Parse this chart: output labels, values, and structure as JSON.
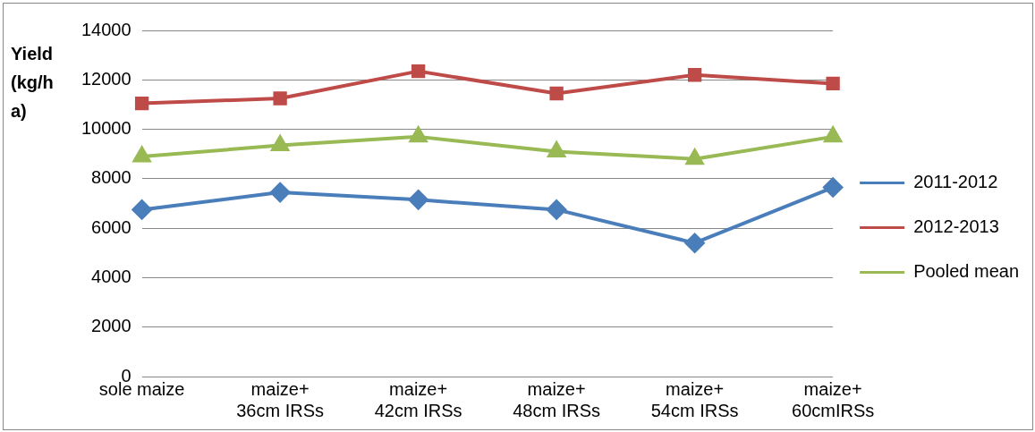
{
  "chart_data": {
    "type": "line",
    "ylabel": "Yield (kg/ha)",
    "categories": [
      "sole maize",
      "maize+ 36cm IRSs",
      "maize+ 42cm IRSs",
      "maize+ 48cm IRSs",
      "maize+ 54cm IRSs",
      "maize+ 60cmIRSs"
    ],
    "series": [
      {
        "name": "2011-2012",
        "color": "#4a7ebb",
        "marker": "diamond",
        "values": [
          6750,
          7450,
          7150,
          6750,
          5400,
          7650
        ]
      },
      {
        "name": "2012-2013",
        "color": "#be4b48",
        "marker": "square",
        "values": [
          11050,
          11250,
          12350,
          11450,
          12200,
          11850
        ]
      },
      {
        "name": "Pooled mean",
        "color": "#98b954",
        "marker": "triangle",
        "values": [
          8900,
          9350,
          9700,
          9100,
          8800,
          9700
        ]
      }
    ],
    "ylim": [
      0,
      14000
    ],
    "yticks": [
      0,
      2000,
      4000,
      6000,
      8000,
      10000,
      12000,
      14000
    ],
    "grid": "y",
    "legend": "right"
  }
}
